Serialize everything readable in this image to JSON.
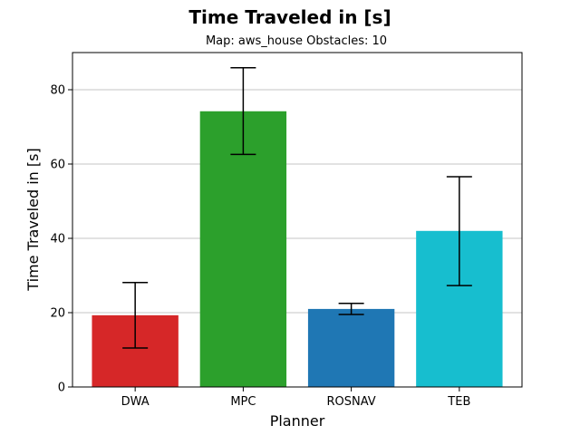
{
  "chart_data": {
    "type": "bar",
    "title": "Time Traveled in [s]",
    "subtitle": "Map: aws_house Obstacles: 10",
    "xlabel": "Planner",
    "ylabel": "Time Traveled in [s]",
    "categories": [
      "DWA",
      "MPC",
      "ROSNAV",
      "TEB"
    ],
    "values": [
      19.3,
      74.2,
      21.0,
      42.0
    ],
    "error_low": [
      10.5,
      62.6,
      19.5,
      27.3
    ],
    "error_high": [
      28.1,
      85.9,
      22.5,
      56.6
    ],
    "colors": [
      "#d62728",
      "#2ca02c",
      "#1f77b4",
      "#17becf"
    ],
    "ylim": [
      0,
      90
    ],
    "yticks": [
      0,
      20,
      40,
      60,
      80
    ],
    "grid": "horizontal",
    "legend": "none"
  }
}
